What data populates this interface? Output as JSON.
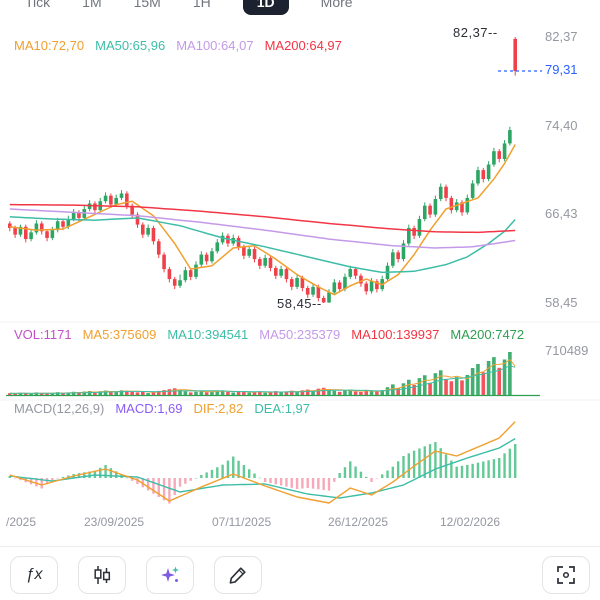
{
  "tabs": {
    "items": [
      {
        "label": "Tick",
        "selected": false
      },
      {
        "label": "1M",
        "selected": false
      },
      {
        "label": "15M",
        "selected": false
      },
      {
        "label": "1H",
        "selected": false
      },
      {
        "label": "1D",
        "selected": true
      },
      {
        "label": "More",
        "selected": false
      }
    ],
    "selected_bg": "#1C2230"
  },
  "price_pane": {
    "ma_labels": [
      {
        "text": "MA10:72,70",
        "color": "#F0A02F"
      },
      {
        "text": "MA50:65,96",
        "color": "#3DBDA7"
      },
      {
        "text": "MA100:64,07",
        "color": "#C49AE8"
      },
      {
        "text": "MA200:64,97",
        "color": "#F23645"
      }
    ],
    "high_annotation": "82,37--",
    "low_annotation": "58,45--",
    "axis_labels": {
      "top": "82,37",
      "current": "79,31",
      "upper": "74,40",
      "middle": "66,43",
      "lower": "58,45"
    }
  },
  "volume_pane": {
    "labels": [
      {
        "text": "VOL:1171",
        "color": "#C050C8"
      },
      {
        "text": "MA5:375609",
        "color": "#F0A02F"
      },
      {
        "text": "MA10:394541",
        "color": "#3DBDA7"
      },
      {
        "text": "MA50:235379",
        "color": "#C49AE8"
      },
      {
        "text": "MA100:139937",
        "color": "#F23645"
      },
      {
        "text": "MA200:7472",
        "color": "#2E9E4F"
      }
    ],
    "axis_label": "710489"
  },
  "macd_pane": {
    "labels": [
      {
        "text": "MACD(12,26,9)",
        "color": "#9598A1"
      },
      {
        "text": "MACD:1,69",
        "color": "#8B5CF6"
      },
      {
        "text": "DIF:2,82",
        "color": "#F0A02F"
      },
      {
        "text": "DEA:1,97",
        "color": "#3DBDA7"
      }
    ]
  },
  "date_axis": {
    "labels": [
      "/2025",
      "23/09/2025",
      "07/11/2025",
      "26/12/2025",
      "12/02/2026"
    ]
  },
  "toolbar": {
    "formula_label": "ƒx",
    "buttons": [
      "formula",
      "chart-style",
      "ai-analysis",
      "draw",
      "fullscreen"
    ]
  },
  "chart_data": {
    "type": "candlestick",
    "title": "",
    "price_axis": {
      "max": 82.37,
      "min": 58.45,
      "ticks": [
        82.37,
        74.4,
        66.43,
        58.45
      ],
      "current_price": 79.31
    },
    "volume_axis_max": 710489,
    "colors": {
      "up": "#2DA563",
      "down": "#F0414B",
      "current_line": "#2962FF"
    },
    "candles": [
      [
        65.6,
        65.8,
        64.9,
        65.2
      ],
      [
        65.2,
        65.4,
        64.3,
        64.6
      ],
      [
        64.6,
        65.5,
        64.4,
        65.3
      ],
      [
        65.3,
        65.5,
        63.9,
        64.2
      ],
      [
        64.2,
        65.1,
        64.0,
        64.8
      ],
      [
        64.8,
        65.9,
        64.6,
        65.6
      ],
      [
        65.6,
        65.8,
        64.6,
        64.9
      ],
      [
        64.9,
        65.1,
        64.0,
        64.3
      ],
      [
        64.3,
        65.3,
        64.1,
        65.0
      ],
      [
        65.0,
        66.1,
        64.8,
        65.8
      ],
      [
        65.8,
        66.0,
        65.0,
        65.3
      ],
      [
        65.3,
        66.3,
        65.1,
        66.0
      ],
      [
        66.0,
        66.9,
        65.8,
        66.6
      ],
      [
        66.6,
        66.8,
        65.8,
        66.1
      ],
      [
        66.1,
        67.2,
        65.9,
        66.9
      ],
      [
        66.9,
        67.7,
        66.7,
        67.4
      ],
      [
        67.4,
        67.6,
        66.5,
        66.8
      ],
      [
        66.8,
        67.9,
        66.6,
        67.6
      ],
      [
        67.6,
        68.4,
        67.4,
        68.1
      ],
      [
        68.1,
        68.3,
        67.0,
        67.3
      ],
      [
        67.3,
        68.2,
        67.1,
        67.9
      ],
      [
        67.9,
        68.6,
        67.7,
        68.3
      ],
      [
        68.3,
        68.5,
        66.9,
        67.2
      ],
      [
        67.2,
        67.4,
        66.1,
        66.4
      ],
      [
        66.4,
        66.6,
        65.2,
        65.5
      ],
      [
        65.5,
        65.7,
        64.3,
        64.6
      ],
      [
        64.6,
        65.5,
        64.4,
        65.2
      ],
      [
        65.2,
        65.4,
        63.7,
        64.0
      ],
      [
        64.0,
        64.2,
        62.5,
        62.8
      ],
      [
        62.8,
        63.0,
        61.2,
        61.5
      ],
      [
        61.5,
        61.7,
        60.3,
        60.6
      ],
      [
        60.6,
        60.8,
        59.7,
        60.0
      ],
      [
        60.0,
        61.0,
        59.8,
        60.5
      ],
      [
        60.5,
        61.7,
        60.3,
        61.4
      ],
      [
        61.4,
        61.6,
        60.5,
        60.8
      ],
      [
        60.8,
        62.2,
        60.6,
        61.9
      ],
      [
        61.9,
        63.1,
        61.7,
        62.8
      ],
      [
        62.8,
        63.0,
        61.9,
        62.2
      ],
      [
        62.2,
        63.4,
        62.0,
        63.1
      ],
      [
        63.1,
        64.2,
        62.9,
        63.9
      ],
      [
        63.9,
        64.8,
        63.7,
        64.5
      ],
      [
        64.5,
        64.7,
        63.5,
        63.8
      ],
      [
        63.8,
        64.6,
        63.6,
        64.3
      ],
      [
        64.3,
        64.5,
        63.2,
        63.5
      ],
      [
        63.5,
        63.7,
        62.4,
        62.7
      ],
      [
        62.7,
        63.6,
        62.5,
        63.3
      ],
      [
        63.3,
        63.5,
        62.1,
        62.4
      ],
      [
        62.4,
        62.6,
        61.5,
        61.8
      ],
      [
        61.8,
        62.8,
        61.6,
        62.5
      ],
      [
        62.5,
        62.7,
        61.3,
        61.6
      ],
      [
        61.6,
        61.8,
        60.6,
        60.9
      ],
      [
        60.9,
        61.8,
        60.7,
        61.5
      ],
      [
        61.5,
        61.7,
        60.3,
        60.6
      ],
      [
        60.6,
        60.8,
        59.6,
        59.9
      ],
      [
        59.9,
        61.0,
        59.7,
        60.7
      ],
      [
        60.7,
        60.9,
        59.5,
        59.8
      ],
      [
        59.8,
        60.0,
        58.9,
        59.2
      ],
      [
        59.2,
        60.2,
        59.0,
        59.9
      ],
      [
        59.9,
        60.1,
        58.6,
        58.9
      ],
      [
        58.9,
        59.1,
        58.45,
        58.5
      ],
      [
        58.5,
        59.7,
        58.45,
        59.4
      ],
      [
        59.4,
        60.6,
        59.2,
        60.3
      ],
      [
        60.3,
        60.5,
        59.4,
        59.7
      ],
      [
        59.7,
        61.1,
        59.5,
        60.8
      ],
      [
        60.8,
        61.8,
        60.6,
        61.5
      ],
      [
        61.5,
        61.7,
        60.6,
        60.9
      ],
      [
        60.9,
        61.1,
        59.9,
        60.2
      ],
      [
        60.2,
        60.4,
        59.2,
        59.5
      ],
      [
        59.5,
        60.7,
        59.3,
        60.4
      ],
      [
        60.4,
        60.6,
        59.4,
        59.7
      ],
      [
        59.7,
        60.9,
        59.5,
        60.6
      ],
      [
        60.6,
        62.1,
        60.4,
        61.8
      ],
      [
        61.8,
        63.3,
        61.6,
        63.0
      ],
      [
        63.0,
        63.2,
        62.1,
        62.4
      ],
      [
        62.4,
        64.1,
        62.2,
        63.8
      ],
      [
        63.8,
        65.5,
        63.6,
        65.2
      ],
      [
        65.2,
        65.4,
        64.2,
        64.5
      ],
      [
        64.5,
        66.3,
        64.3,
        66.0
      ],
      [
        66.0,
        67.5,
        65.8,
        67.2
      ],
      [
        67.2,
        67.4,
        66.1,
        66.4
      ],
      [
        66.4,
        68.1,
        66.2,
        67.8
      ],
      [
        67.8,
        69.2,
        67.6,
        68.9
      ],
      [
        68.9,
        69.1,
        67.6,
        67.9
      ],
      [
        67.9,
        68.1,
        66.5,
        66.8
      ],
      [
        66.8,
        67.8,
        66.6,
        67.5
      ],
      [
        67.5,
        67.7,
        66.3,
        66.6
      ],
      [
        66.6,
        68.2,
        66.4,
        67.9
      ],
      [
        67.9,
        69.5,
        67.7,
        69.2
      ],
      [
        69.2,
        70.7,
        69.0,
        70.4
      ],
      [
        70.4,
        70.6,
        69.3,
        69.6
      ],
      [
        69.6,
        71.2,
        69.4,
        70.9
      ],
      [
        70.9,
        72.4,
        70.7,
        72.1
      ],
      [
        72.1,
        72.3,
        71.1,
        71.4
      ],
      [
        71.4,
        73.1,
        71.2,
        72.8
      ],
      [
        72.8,
        74.3,
        72.6,
        74.0
      ],
      [
        82.2,
        82.37,
        78.9,
        79.31
      ]
    ],
    "volumes": [
      45000,
      38000,
      52000,
      41000,
      36000,
      58000,
      43000,
      39000,
      47000,
      62000,
      44000,
      56000,
      68000,
      49000,
      72000,
      81000,
      54000,
      77000,
      88000,
      61000,
      73000,
      92000,
      85000,
      67000,
      59000,
      71000,
      48000,
      63000,
      82000,
      95000,
      110000,
      125000,
      98000,
      76000,
      58000,
      69000,
      83000,
      61000,
      74000,
      87000,
      91000,
      66000,
      57000,
      64000,
      78000,
      55000,
      62000,
      70000,
      53000,
      66000,
      79000,
      58000,
      71000,
      86000,
      64000,
      92000,
      104000,
      75000,
      118000,
      132000,
      96000,
      84000,
      68000,
      90000,
      102000,
      73000,
      65000,
      88000,
      76000,
      82000,
      95000,
      142000,
      188000,
      125000,
      205000,
      262000,
      178000,
      289000,
      335000,
      214000,
      368000,
      415000,
      276000,
      238000,
      305000,
      252000,
      340000,
      452000,
      517000,
      382000,
      566000,
      628000,
      455000,
      590000,
      710489,
      1171
    ],
    "overlays": [
      {
        "name": "MA10",
        "color": "#F0A02F",
        "points": [
          [
            0,
            65.3
          ],
          [
            5,
            65.0
          ],
          [
            10,
            65.1
          ],
          [
            15,
            66.2
          ],
          [
            20,
            67.3
          ],
          [
            23,
            67.6
          ],
          [
            27,
            66.3
          ],
          [
            31,
            63.8
          ],
          [
            34,
            61.5
          ],
          [
            38,
            61.8
          ],
          [
            42,
            63.4
          ],
          [
            46,
            63.6
          ],
          [
            50,
            62.4
          ],
          [
            54,
            61.0
          ],
          [
            58,
            59.9
          ],
          [
            61,
            59.2
          ],
          [
            64,
            60.0
          ],
          [
            67,
            60.6
          ],
          [
            70,
            60.1
          ],
          [
            73,
            61.0
          ],
          [
            76,
            62.8
          ],
          [
            79,
            65.0
          ],
          [
            82,
            66.9
          ],
          [
            85,
            67.4
          ],
          [
            88,
            67.9
          ],
          [
            91,
            69.6
          ],
          [
            93,
            71.0
          ],
          [
            95,
            72.7
          ]
        ]
      },
      {
        "name": "MA50",
        "color": "#3DBDA7",
        "points": [
          [
            0,
            66.2
          ],
          [
            8,
            66.0
          ],
          [
            16,
            65.9
          ],
          [
            24,
            66.1
          ],
          [
            32,
            65.4
          ],
          [
            40,
            64.3
          ],
          [
            48,
            63.5
          ],
          [
            56,
            62.6
          ],
          [
            64,
            61.7
          ],
          [
            70,
            61.2
          ],
          [
            76,
            61.3
          ],
          [
            82,
            61.9
          ],
          [
            86,
            62.6
          ],
          [
            90,
            63.8
          ],
          [
            93,
            64.9
          ],
          [
            95,
            65.96
          ]
        ]
      },
      {
        "name": "MA100",
        "color": "#C49AE8",
        "points": [
          [
            0,
            66.9
          ],
          [
            12,
            66.6
          ],
          [
            24,
            66.3
          ],
          [
            36,
            65.7
          ],
          [
            48,
            65.0
          ],
          [
            60,
            64.2
          ],
          [
            72,
            63.6
          ],
          [
            80,
            63.4
          ],
          [
            87,
            63.5
          ],
          [
            95,
            64.07
          ]
        ]
      },
      {
        "name": "MA200",
        "color": "#F23645",
        "points": [
          [
            0,
            67.3
          ],
          [
            12,
            67.25
          ],
          [
            24,
            67.1
          ],
          [
            36,
            66.7
          ],
          [
            48,
            66.2
          ],
          [
            60,
            65.6
          ],
          [
            72,
            65.1
          ],
          [
            80,
            64.85
          ],
          [
            88,
            64.8
          ],
          [
            95,
            64.97
          ]
        ]
      }
    ],
    "volume_overlay_ma200": 7472,
    "macd": {
      "params": [
        12,
        26,
        9
      ],
      "dif_color": "#F0A02F",
      "dea_color": "#3DBDA7",
      "hist_pos_color": "#63C996",
      "hist_neg_color": "#F6A9B8",
      "dif": [
        [
          0,
          0.15
        ],
        [
          6,
          -0.35
        ],
        [
          12,
          0.1
        ],
        [
          18,
          0.45
        ],
        [
          24,
          -0.1
        ],
        [
          30,
          -1.15
        ],
        [
          36,
          -0.45
        ],
        [
          42,
          0.2
        ],
        [
          48,
          -0.4
        ],
        [
          54,
          -0.95
        ],
        [
          60,
          -1.25
        ],
        [
          64,
          -0.5
        ],
        [
          68,
          -0.85
        ],
        [
          72,
          -0.2
        ],
        [
          76,
          0.6
        ],
        [
          80,
          1.35
        ],
        [
          84,
          1.1
        ],
        [
          88,
          1.55
        ],
        [
          92,
          2.0
        ],
        [
          95,
          2.82
        ]
      ],
      "dea": [
        [
          0,
          0.1
        ],
        [
          8,
          -0.15
        ],
        [
          16,
          0.15
        ],
        [
          24,
          0.05
        ],
        [
          32,
          -0.7
        ],
        [
          40,
          -0.35
        ],
        [
          48,
          -0.3
        ],
        [
          56,
          -0.8
        ],
        [
          62,
          -1.0
        ],
        [
          68,
          -0.75
        ],
        [
          74,
          -0.35
        ],
        [
          80,
          0.45
        ],
        [
          86,
          1.0
        ],
        [
          92,
          1.5
        ],
        [
          95,
          1.97
        ]
      ]
    }
  }
}
